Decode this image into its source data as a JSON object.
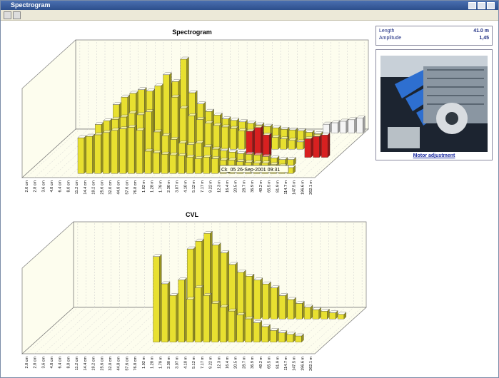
{
  "window": {
    "title": "Spectrogram"
  },
  "info": {
    "rows": [
      [
        "Length",
        "41.0 m"
      ],
      [
        "Amplitude",
        "1,45"
      ]
    ]
  },
  "photo": {
    "caption": "Motor adjustment"
  },
  "tooltip": "Ck_05  26-Sep-2001 09:31",
  "chart_data": [
    {
      "type": "bar3d",
      "title": "Spectrogram",
      "grid": true,
      "categories": [
        "2.0 cm",
        "2.8 cm",
        "3.6 cm",
        "4.8 cm",
        "6.4 cm",
        "8.0 cm",
        "11.2 cm",
        "14.4 cm",
        "19.2 cm",
        "25.6 cm",
        "32.0 cm",
        "44.8 cm",
        "57.6 cm",
        "76.8 cm",
        "1.02 m",
        "1.28 m",
        "1.79 m",
        "2.30 m",
        "3.07 m",
        "4.10 m",
        "5.12 m",
        "7.17 m",
        "9.22 m",
        "12.3 m",
        "16.4 m",
        "20.5 m",
        "28.7 m",
        "36.9 m",
        "49.2 m",
        "65.5 m",
        "81.9 m",
        "114.7 m",
        "147.5 m",
        "196.6 m",
        "262.1 m"
      ],
      "series": [
        {
          "color": "#e8e030",
          "values": [
            null,
            null,
            null,
            null,
            null,
            null,
            48,
            50,
            52,
            55,
            58,
            60,
            62,
            58,
            30,
            28,
            26,
            25,
            24,
            22,
            20,
            22,
            20,
            18,
            18,
            16,
            15,
            14,
            14,
            12,
            10,
            8,
            null,
            null,
            null
          ]
        },
        {
          "color": "#e8e030",
          "values": [
            null,
            null,
            null,
            null,
            null,
            null,
            null,
            55,
            60,
            62,
            65,
            70,
            68,
            72,
            45,
            40,
            35,
            30,
            28,
            30,
            25,
            22,
            20,
            18,
            16,
            15,
            14,
            12,
            10,
            8,
            8,
            null,
            null,
            null,
            null
          ]
        },
        {
          "color": "#d82020",
          "values": [
            null,
            null,
            null,
            null,
            null,
            null,
            null,
            null,
            null,
            null,
            null,
            null,
            null,
            null,
            null,
            null,
            null,
            null,
            null,
            null,
            null,
            null,
            null,
            null,
            35,
            40,
            30,
            null,
            null,
            null,
            null,
            25,
            28,
            30,
            null
          ]
        },
        {
          "color": "#e8e030",
          "values": [
            null,
            null,
            null,
            null,
            null,
            null,
            null,
            60,
            70,
            75,
            80,
            78,
            85,
            100,
            70,
            55,
            45,
            40,
            35,
            32,
            30,
            28,
            25,
            22,
            20,
            18,
            16,
            14,
            12,
            10,
            8,
            null,
            null,
            null,
            null
          ]
        },
        {
          "color": "#e8e030",
          "values": [
            null,
            null,
            null,
            null,
            null,
            null,
            null,
            null,
            50,
            55,
            60,
            70,
            75,
            80,
            110,
            65,
            50,
            40,
            35,
            30,
            28,
            26,
            24,
            22,
            20,
            18,
            16,
            15,
            14,
            12,
            10,
            null,
            null,
            null,
            null
          ]
        },
        {
          "color": "#f4f4f4",
          "values": [
            null,
            null,
            null,
            null,
            null,
            null,
            null,
            null,
            null,
            null,
            null,
            null,
            null,
            null,
            null,
            null,
            null,
            null,
            null,
            null,
            null,
            null,
            null,
            null,
            null,
            null,
            null,
            null,
            null,
            null,
            12,
            14,
            16,
            18,
            20
          ]
        }
      ]
    },
    {
      "type": "bar3d",
      "title": "CVL",
      "grid": true,
      "categories": [
        "2.0 cm",
        "2.8 cm",
        "3.6 cm",
        "4.8 cm",
        "6.4 cm",
        "8.0 cm",
        "11.2 cm",
        "14.4 cm",
        "19.2 cm",
        "25.6 cm",
        "32.0 cm",
        "44.8 cm",
        "57.6 cm",
        "76.8 cm",
        "1.02 m",
        "1.28 m",
        "1.79 m",
        "2.30 m",
        "3.07 m",
        "4.10 m",
        "5.12 m",
        "7.17 m",
        "9.22 m",
        "12.3 m",
        "16.4 m",
        "20.5 m",
        "28.7 m",
        "36.9 m",
        "49.2 m",
        "65.5 m",
        "81.9 m",
        "114.7 m",
        "147.5 m",
        "196.6 m",
        "262.1 m"
      ],
      "series": [
        {
          "color": "#e8e030",
          "values": [
            null,
            null,
            null,
            null,
            null,
            null,
            null,
            null,
            null,
            null,
            null,
            null,
            null,
            null,
            110,
            75,
            60,
            80,
            55,
            70,
            60,
            50,
            45,
            40,
            35,
            30,
            25,
            20,
            15,
            12,
            10,
            8,
            null,
            null,
            null
          ]
        },
        {
          "color": "#e8e030",
          "values": [
            null,
            null,
            null,
            null,
            null,
            null,
            null,
            null,
            null,
            null,
            null,
            null,
            null,
            null,
            null,
            90,
            100,
            110,
            95,
            85,
            70,
            60,
            55,
            50,
            45,
            40,
            30,
            25,
            20,
            15,
            12,
            10,
            8,
            6,
            null
          ]
        }
      ]
    }
  ]
}
